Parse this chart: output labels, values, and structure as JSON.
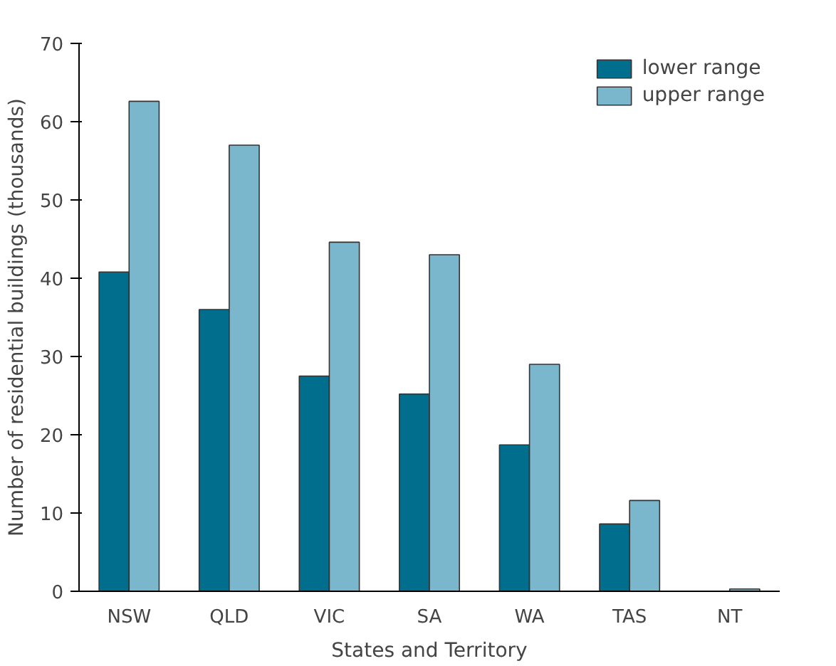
{
  "chart_data": {
    "type": "bar",
    "xlabel": "States and Territory",
    "ylabel": "Number of residential buildings (thousands)",
    "categories": [
      "NSW",
      "QLD",
      "VIC",
      "SA",
      "WA",
      "TAS",
      "NT"
    ],
    "series": [
      {
        "name": "lower range",
        "color": "#006e8c",
        "values": [
          40.8,
          36,
          27.5,
          25.2,
          18.7,
          8.6,
          null
        ]
      },
      {
        "name": "upper range",
        "color": "#7ab6cc",
        "values": [
          62.6,
          57,
          44.6,
          43,
          29,
          11.6,
          0.3
        ]
      }
    ],
    "ylim": [
      0,
      70
    ],
    "yticks": [
      0,
      10,
      20,
      30,
      40,
      50,
      60,
      70
    ],
    "grid": false,
    "legend": "top right"
  }
}
